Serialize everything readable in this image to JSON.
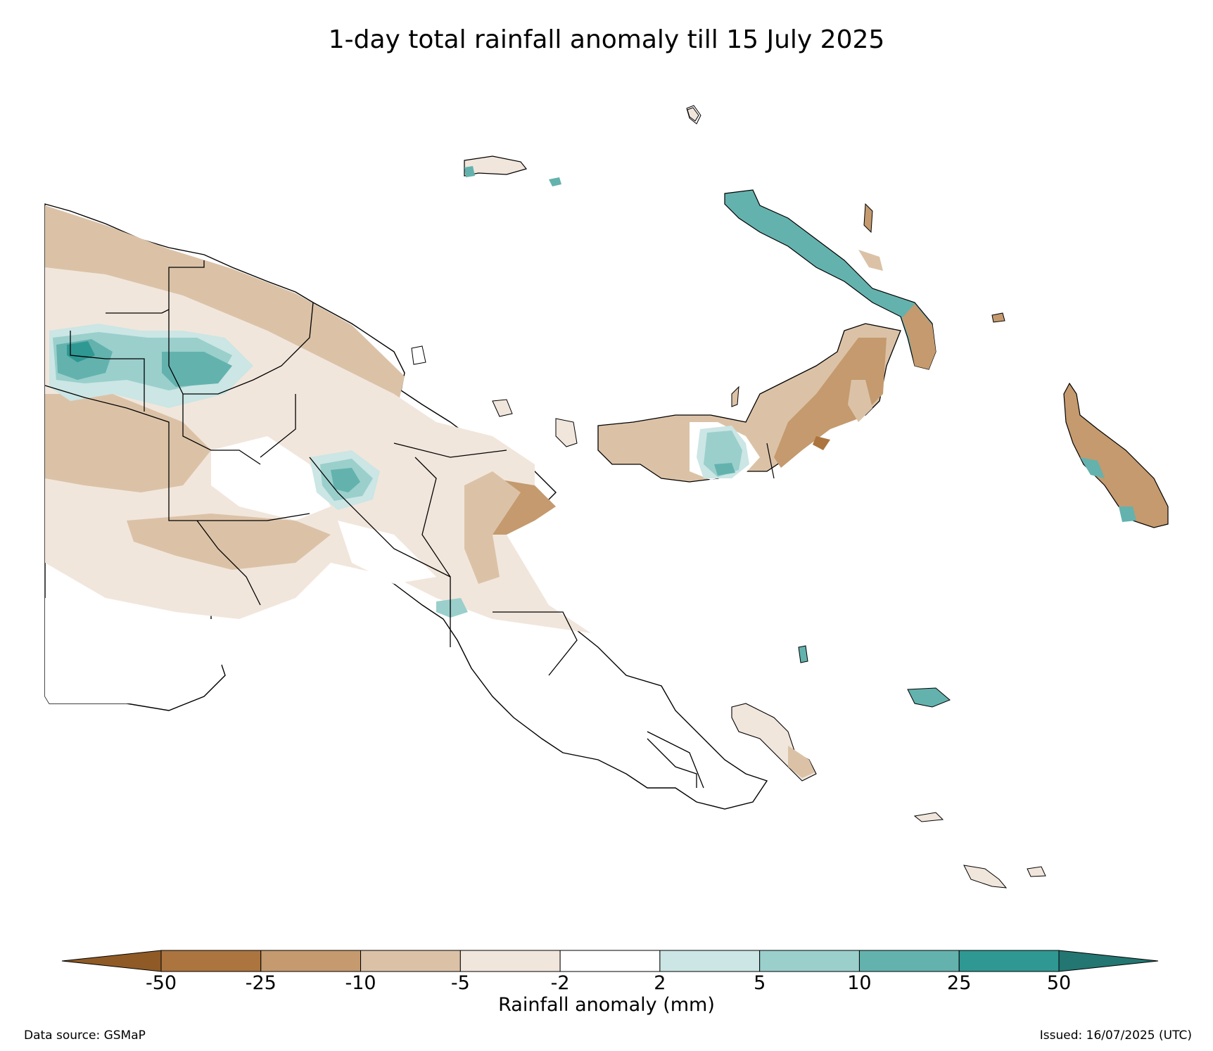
{
  "title": "1-day total rainfall anomaly till 15 July 2025",
  "colorbar": {
    "label": "Rainfall anomaly (mm)",
    "ticks": [
      "-50",
      "-25",
      "-10",
      "-5",
      "-2",
      "2",
      "5",
      "10",
      "25",
      "50"
    ],
    "colors": {
      "below_-50": "#8f5a26",
      "-50_-25": "#ac743e",
      "-25_-10": "#c49a6e",
      "-10_-5": "#dbc2a7",
      "-5_-2": "#f1e6dc",
      "-2_2": "#ffffff",
      "2_5": "#cbe6e4",
      "5_10": "#9acfcc",
      "10_25": "#63b2ae",
      "25_50": "#2f9893",
      "above_50": "#237671"
    }
  },
  "footer": {
    "data_source": "Data source: GSMaP",
    "issued": "Issued: 16/07/2025 (UTC)"
  }
}
